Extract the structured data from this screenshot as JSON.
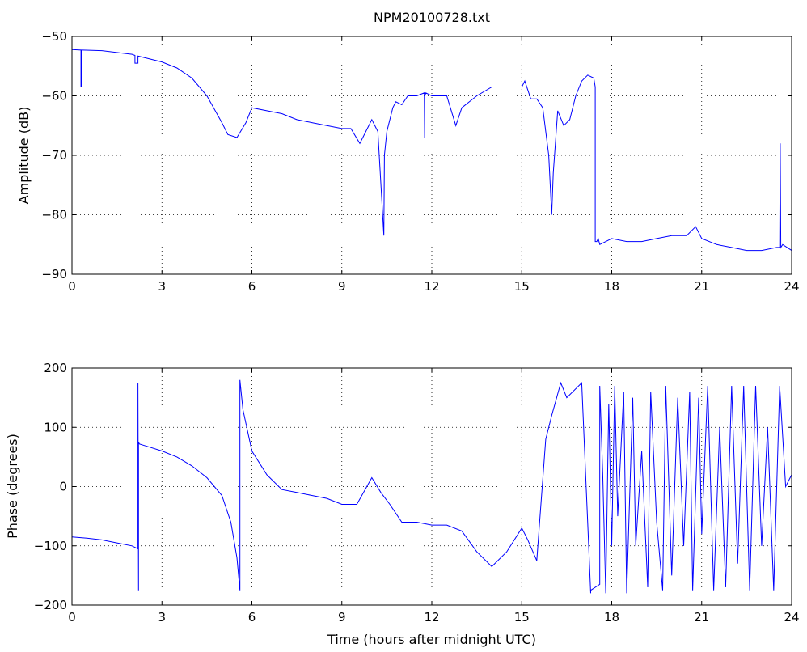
{
  "chart_data": [
    {
      "type": "line",
      "title": "NPM20100728.txt",
      "xlabel": "",
      "ylabel": "Amplitude (dB)",
      "xlim": [
        0,
        24
      ],
      "ylim": [
        -90,
        -50
      ],
      "xticks": [
        "0",
        "3",
        "6",
        "9",
        "12",
        "15",
        "18",
        "21",
        "24"
      ],
      "yticks": [
        "−50",
        "−60",
        "−70",
        "−80",
        "−90"
      ],
      "grid": true,
      "color": "#0000ff",
      "series": [
        {
          "x": [
            0,
            0.3,
            0.3,
            0.32,
            0.32,
            0.35,
            0.35,
            1.0,
            2.0,
            2.1,
            2.1,
            2.2,
            2.2,
            3.0,
            3.5,
            4.0,
            4.5,
            5.0,
            5.2,
            5.5,
            5.8,
            6.0,
            6.5,
            7.0,
            7.5,
            8.0,
            8.5,
            9.0,
            9.3,
            9.6,
            9.8,
            10.0,
            10.2,
            10.4,
            10.42,
            10.5,
            10.7,
            10.8,
            11.0,
            11.2,
            11.5,
            11.75,
            11.76,
            11.77,
            11.8,
            12.0,
            12.5,
            12.8,
            13.0,
            13.5,
            14.0,
            14.5,
            15.0,
            15.1,
            15.3,
            15.5,
            15.7,
            15.9,
            16.0,
            16.05,
            16.2,
            16.4,
            16.6,
            16.8,
            17.0,
            17.2,
            17.4,
            17.45,
            17.45,
            17.5,
            17.55,
            17.6,
            18.0,
            18.5,
            19.0,
            19.5,
            20.0,
            20.5,
            20.8,
            21.0,
            21.5,
            22.0,
            22.5,
            23.0,
            23.5,
            23.6,
            23.62,
            23.64,
            23.7,
            24.0
          ],
          "y": [
            -52.2,
            -52.3,
            -58.5,
            -58.5,
            -52.3,
            -52.3,
            -52.3,
            -52.4,
            -53.0,
            -53.2,
            -54.5,
            -54.5,
            -53.3,
            -54.3,
            -55.3,
            -57.0,
            -60.0,
            -64.5,
            -66.5,
            -67.0,
            -64.5,
            -62.0,
            -62.5,
            -63.0,
            -64.0,
            -64.5,
            -65.0,
            -65.5,
            -65.5,
            -68.0,
            -66.0,
            -64.0,
            -66.0,
            -83.5,
            -70.0,
            -66.0,
            -62.0,
            -61.0,
            -61.5,
            -60.0,
            -60.0,
            -59.5,
            -67.0,
            -60.0,
            -59.5,
            -60.0,
            -60.0,
            -65.0,
            -62.0,
            -60.0,
            -58.5,
            -58.5,
            -58.5,
            -57.5,
            -60.5,
            -60.5,
            -62.0,
            -70.0,
            -80.0,
            -73.0,
            -62.5,
            -65.0,
            -64.0,
            -60.0,
            -57.5,
            -56.5,
            -57.0,
            -58.5,
            -84.5,
            -84.5,
            -84.0,
            -85.0,
            -84.0,
            -84.5,
            -84.5,
            -84.0,
            -83.5,
            -83.5,
            -82.0,
            -84.0,
            -85.0,
            -85.5,
            -86.0,
            -86.0,
            -85.5,
            -85.5,
            -68.0,
            -85.5,
            -85.0,
            -86.0
          ]
        }
      ]
    },
    {
      "type": "line",
      "title": "",
      "xlabel": "Time (hours after midnight UTC)",
      "ylabel": "Phase (degrees)",
      "xlim": [
        0,
        24
      ],
      "ylim": [
        -200,
        200
      ],
      "xticks": [
        "0",
        "3",
        "6",
        "9",
        "12",
        "15",
        "18",
        "21",
        "24"
      ],
      "yticks": [
        "200",
        "100",
        "0",
        "−100",
        "−200"
      ],
      "grid": true,
      "color": "#0000ff",
      "series": [
        {
          "x": [
            0,
            0.5,
            1.0,
            1.5,
            2.0,
            2.2,
            2.2,
            2.22,
            2.22,
            2.25,
            2.5,
            3.0,
            3.5,
            4.0,
            4.5,
            5.0,
            5.3,
            5.5,
            5.6,
            5.6,
            5.7,
            6.0,
            6.5,
            7.0,
            7.5,
            8.0,
            8.5,
            9.0,
            9.5,
            10.0,
            10.3,
            10.6,
            11.0,
            11.5,
            12.0,
            12.5,
            13.0,
            13.5,
            14.0,
            14.5,
            15.0,
            15.2,
            15.5,
            15.8,
            16.0,
            16.3,
            16.5,
            17.0,
            17.3,
            17.3,
            17.6,
            17.6,
            17.7,
            17.8,
            17.9,
            18.0,
            18.1,
            18.2,
            18.4,
            18.5,
            18.7,
            18.8,
            19.0,
            19.2,
            19.3,
            19.5,
            19.7,
            19.8,
            20.0,
            20.2,
            20.4,
            20.6,
            20.7,
            20.9,
            21.0,
            21.2,
            21.4,
            21.6,
            21.8,
            22.0,
            22.2,
            22.4,
            22.6,
            22.8,
            23.0,
            23.2,
            23.4,
            23.6,
            23.8,
            24.0
          ],
          "y": [
            -85,
            -87,
            -90,
            -95,
            -100,
            -105,
            175,
            -175,
            75,
            72,
            68,
            60,
            50,
            35,
            15,
            -15,
            -60,
            -120,
            -175,
            180,
            130,
            60,
            20,
            -5,
            -10,
            -15,
            -20,
            -30,
            -30,
            15,
            -10,
            -30,
            -60,
            -60,
            -65,
            -65,
            -75,
            -110,
            -135,
            -110,
            -70,
            -90,
            -125,
            80,
            120,
            175,
            150,
            175,
            -180,
            -175,
            -165,
            170,
            20,
            -180,
            140,
            -100,
            170,
            -50,
            160,
            -180,
            150,
            -100,
            60,
            -170,
            160,
            -60,
            -175,
            170,
            -150,
            150,
            -100,
            160,
            -175,
            150,
            -80,
            170,
            -175,
            100,
            -170,
            170,
            -130,
            170,
            -175,
            170,
            -100,
            100,
            -175,
            170,
            0,
            20
          ]
        }
      ]
    }
  ]
}
